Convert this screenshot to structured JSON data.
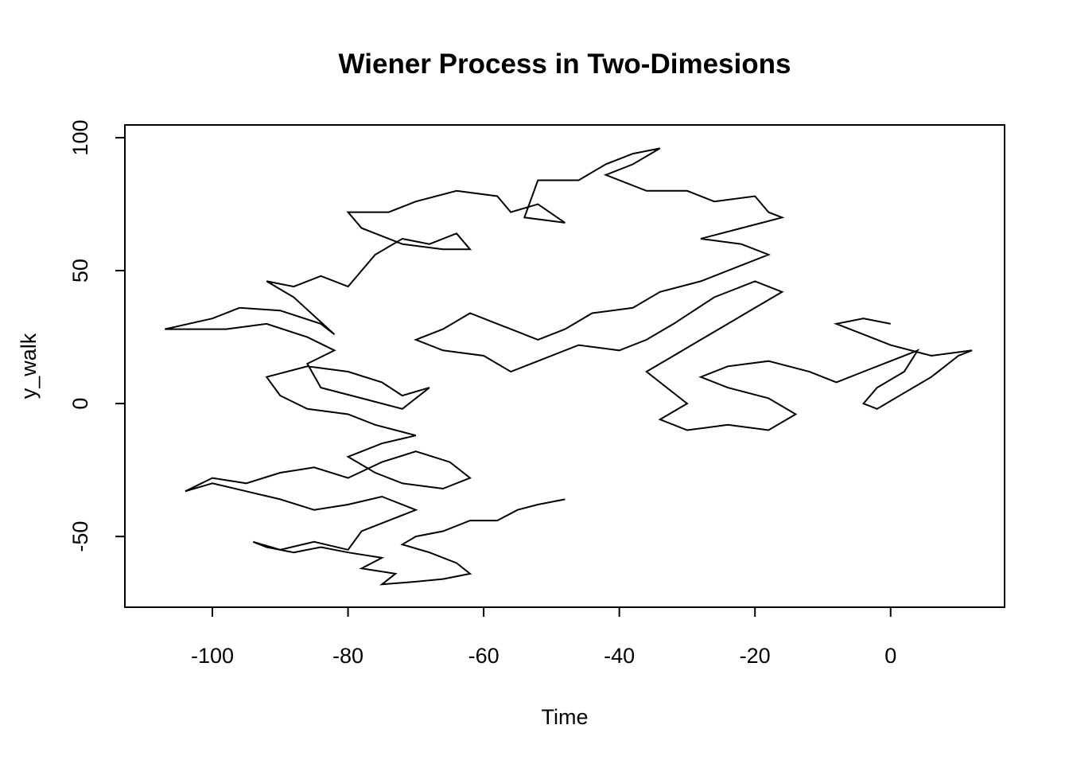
{
  "chart_data": {
    "type": "line",
    "title": "Wiener Process in Two-Dimesions",
    "xlabel": "Time",
    "ylabel": "y_walk",
    "color": "#000000",
    "x": [
      -48,
      -52,
      -55,
      -58,
      -62,
      -66,
      -70,
      -72,
      -68,
      -64,
      -62,
      -66,
      -70,
      -75,
      -73,
      -78,
      -75,
      -80,
      -84,
      -88,
      -92,
      -94,
      -90,
      -85,
      -80,
      -78,
      -74,
      -70,
      -75,
      -80,
      -85,
      -90,
      -95,
      -100,
      -104,
      -100,
      -95,
      -90,
      -85,
      -80,
      -75,
      -70,
      -65,
      -62,
      -66,
      -72,
      -76,
      -80,
      -75,
      -70,
      -76,
      -80,
      -86,
      -90,
      -92,
      -86,
      -80,
      -75,
      -72,
      -68,
      -72,
      -78,
      -84,
      -86,
      -82,
      -86,
      -92,
      -98,
      -104,
      -107,
      -100,
      -96,
      -90,
      -84,
      -82,
      -88,
      -92,
      -88,
      -84,
      -80,
      -78,
      -76,
      -72,
      -68,
      -64,
      -62,
      -66,
      -72,
      -78,
      -80,
      -74,
      -70,
      -64,
      -58,
      -56,
      -52,
      -48,
      -54,
      -52,
      -46,
      -42,
      -38,
      -34,
      -38,
      -42,
      -36,
      -30,
      -26,
      -20,
      -18,
      -16,
      -22,
      -28,
      -22,
      -18,
      -24,
      -28,
      -34,
      -38,
      -44,
      -48,
      -52,
      -58,
      -62,
      -66,
      -70,
      -66,
      -60,
      -56,
      -52,
      -46,
      -40,
      -36,
      -32,
      -26,
      -20,
      -16,
      -20,
      -24,
      -28,
      -32,
      -36,
      -34,
      -30,
      -34,
      -30,
      -24,
      -18,
      -14,
      -18,
      -24,
      -28,
      -24,
      -18,
      -12,
      -8,
      -4,
      0,
      4,
      2,
      -2,
      -4,
      -2,
      2,
      6,
      10,
      12,
      6,
      0,
      -4,
      -8,
      -4,
      0
    ],
    "values": [
      -36,
      -38,
      -40,
      -44,
      -44,
      -48,
      -50,
      -53,
      -56,
      -60,
      -64,
      -66,
      -67,
      -68,
      -64,
      -62,
      -58,
      -56,
      -54,
      -56,
      -54,
      -52,
      -55,
      -52,
      -55,
      -48,
      -44,
      -40,
      -35,
      -38,
      -40,
      -36,
      -33,
      -30,
      -33,
      -28,
      -30,
      -26,
      -24,
      -28,
      -22,
      -18,
      -22,
      -28,
      -32,
      -30,
      -26,
      -20,
      -15,
      -12,
      -8,
      -4,
      -2,
      3,
      10,
      14,
      12,
      8,
      3,
      6,
      -2,
      2,
      6,
      15,
      20,
      25,
      30,
      28,
      28,
      28,
      32,
      36,
      35,
      30,
      26,
      40,
      46,
      44,
      48,
      44,
      50,
      56,
      62,
      60,
      64,
      58,
      58,
      60,
      66,
      72,
      72,
      76,
      80,
      78,
      72,
      75,
      68,
      70,
      84,
      84,
      90,
      94,
      96,
      90,
      86,
      80,
      80,
      76,
      78,
      72,
      70,
      66,
      62,
      60,
      56,
      50,
      46,
      42,
      36,
      34,
      28,
      24,
      30,
      34,
      28,
      24,
      20,
      18,
      12,
      16,
      22,
      20,
      24,
      30,
      40,
      46,
      42,
      36,
      30,
      24,
      18,
      12,
      8,
      0,
      -6,
      -10,
      -8,
      -10,
      -4,
      2,
      6,
      10,
      14,
      16,
      12,
      8,
      12,
      16,
      20,
      12,
      6,
      0,
      -2,
      4,
      10,
      18,
      20,
      18,
      22,
      26,
      30,
      32,
      30
    ],
    "xlim": [
      -112.9,
      16.8
    ],
    "ylim": [
      -76.6,
      104.8
    ],
    "xticks": [
      -100,
      -80,
      -60,
      -40,
      -20,
      0
    ],
    "yticks": [
      -50,
      0,
      50,
      100
    ]
  }
}
